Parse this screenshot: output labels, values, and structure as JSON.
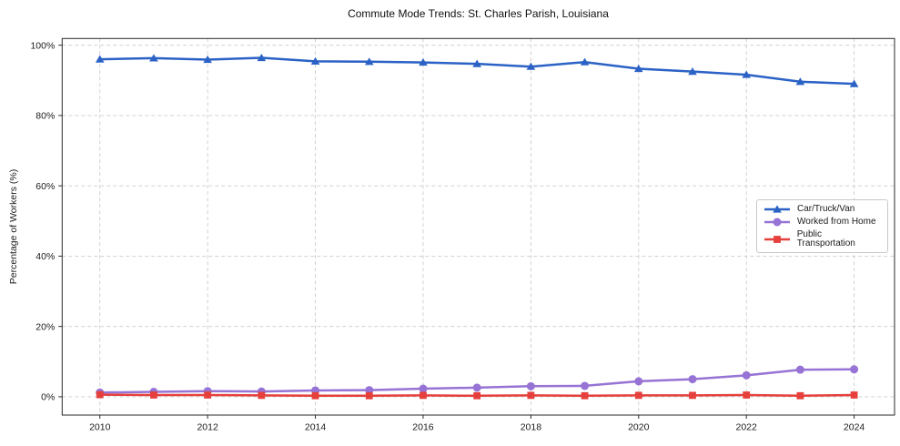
{
  "chart_data": {
    "type": "line",
    "title": "Commute Mode Trends: St. Charles Parish, Louisiana",
    "xlabel": "",
    "ylabel": "Percentage of Workers (%)",
    "x": [
      2010,
      2011,
      2012,
      2013,
      2014,
      2015,
      2016,
      2017,
      2018,
      2019,
      2020,
      2021,
      2022,
      2023,
      2024
    ],
    "series": [
      {
        "name": "Car/Truck/Van",
        "color": "#2b62c6",
        "marker": "triangle",
        "values": [
          96.0,
          96.3,
          95.9,
          96.4,
          95.4,
          95.3,
          95.1,
          94.7,
          93.9,
          95.2,
          93.3,
          92.5,
          91.6,
          89.6,
          89.0
        ]
      },
      {
        "name": "Worked from Home",
        "color": "#9673d4",
        "marker": "circle",
        "values": [
          1.2,
          1.4,
          1.6,
          1.5,
          1.8,
          1.9,
          2.3,
          2.6,
          3.0,
          3.1,
          4.4,
          5.0,
          6.1,
          7.7,
          7.8
        ]
      },
      {
        "name": "Public Transportation",
        "color": "#e5403c",
        "marker": "square",
        "values": [
          0.6,
          0.5,
          0.5,
          0.4,
          0.3,
          0.3,
          0.4,
          0.3,
          0.4,
          0.3,
          0.4,
          0.4,
          0.5,
          0.3,
          0.5
        ]
      }
    ],
    "xticks": [
      2010,
      2012,
      2014,
      2016,
      2018,
      2020,
      2022,
      2024
    ],
    "xtick_labels": [
      "2010",
      "2012",
      "2014",
      "2016",
      "2018",
      "2020",
      "2022",
      "2024"
    ],
    "yticks": [
      0,
      20,
      40,
      60,
      80,
      100
    ],
    "ytick_labels": [
      "0%",
      "20%",
      "40%",
      "60%",
      "80%",
      "100%"
    ],
    "xlim": [
      2009.3,
      2024.75
    ],
    "ylim": [
      -5.2,
      101.9
    ],
    "grid": "dashed",
    "legend_position": "center-right"
  },
  "colors": {
    "grid": "#cccccc",
    "spine": "#2a2a2a",
    "tick": "#2a2a2a",
    "text": "#1a1a1a",
    "background": "#ffffff",
    "legend_border": "#c8c8c8"
  }
}
